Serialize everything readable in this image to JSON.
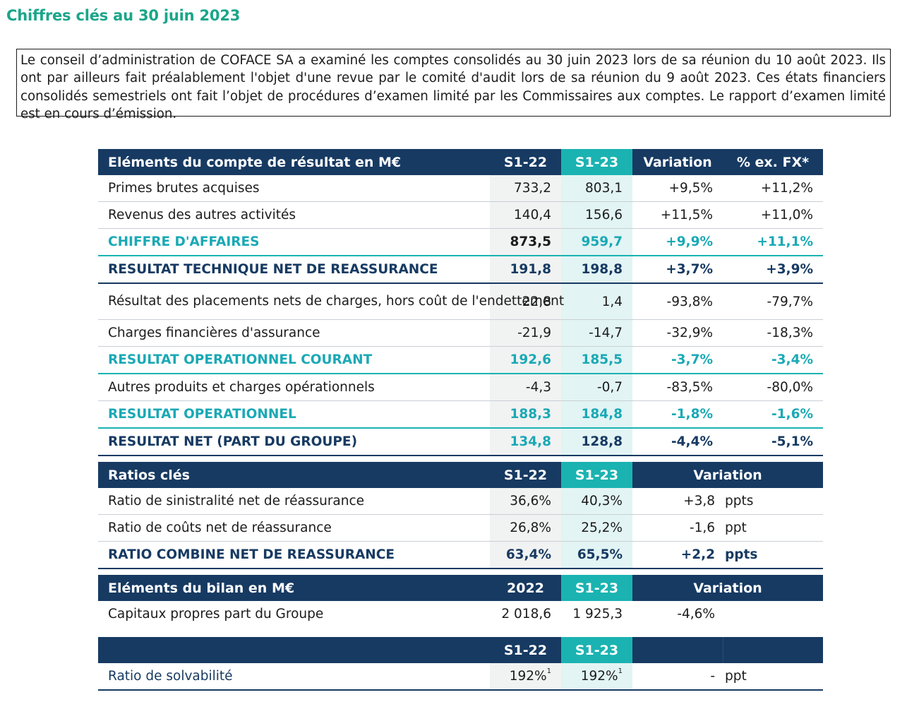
{
  "title": "Chiffres clés au 30 juin 2023",
  "intro": "Le conseil d’administration de COFACE SA a examiné les comptes consolidés au 30 juin 2023 lors de sa réunion du 10 août 2023. Ils ont par ailleurs fait préalablement l'objet d'une revue par le comité d'audit lors de sa réunion du 9 août 2023. Ces états financiers consolidés semestriels ont fait l’objet de procédures d’examen limité par les Commissaires aux comptes. Le rapport d’examen limité est en cours d’émission.",
  "income": {
    "header": {
      "label": "Eléments du compte de résultat en M€",
      "c1": "S1-22",
      "c2": "S1-23",
      "c3": "Variation",
      "c4": "% ex. FX*"
    },
    "rows": [
      {
        "label": "Primes brutes acquises",
        "c1": "733,2",
        "c2": "803,1",
        "c3": "+9,5%",
        "c4": "+11,2%"
      },
      {
        "label": "Revenus des autres activités",
        "c1": "140,4",
        "c2": "156,6",
        "c3": "+11,5%",
        "c4": "+11,0%"
      },
      {
        "label": "CHIFFRE D'AFFAIRES",
        "c1": "873,5",
        "c2": "959,7",
        "c3": "+9,9%",
        "c4": "+11,1%"
      },
      {
        "label": "RESULTAT TECHNIQUE NET DE REASSURANCE",
        "c1": "191,8",
        "c2": "198,8",
        "c3": "+3,7%",
        "c4": "+3,9%"
      },
      {
        "label": "Résultat des placements nets de charges, hors coût de l'endettement",
        "c1": "22,8",
        "c2": "1,4",
        "c3": "-93,8%",
        "c4": "-79,7%"
      },
      {
        "label": "Charges financières d'assurance",
        "c1": "-21,9",
        "c2": "-14,7",
        "c3": "-32,9%",
        "c4": "-18,3%"
      },
      {
        "label": "RESULTAT OPERATIONNEL COURANT",
        "c1": "192,6",
        "c2": "185,5",
        "c3": "-3,7%",
        "c4": "-3,4%"
      },
      {
        "label": "Autres produits et charges opérationnels",
        "c1": "-4,3",
        "c2": "-0,7",
        "c3": "-83,5%",
        "c4": "-80,0%"
      },
      {
        "label": "RESULTAT OPERATIONNEL",
        "c1": "188,3",
        "c2": "184,8",
        "c3": "-1,8%",
        "c4": "-1,6%"
      },
      {
        "label": "RESULTAT NET (PART DU GROUPE)",
        "c1": "134,8",
        "c2": "128,8",
        "c3": "-4,4%",
        "c4": "-5,1%"
      }
    ]
  },
  "ratios": {
    "header": {
      "label": "Ratios clés",
      "c1": "S1-22",
      "c2": "S1-23",
      "c3": "Variation"
    },
    "rows": [
      {
        "label": "Ratio de sinistralité net de réassurance",
        "c1": "36,6%",
        "c2": "40,3%",
        "num": "+3,8",
        "unit": "ppts"
      },
      {
        "label": "Ratio de coûts net de réassurance",
        "c1": "26,8%",
        "c2": "25,2%",
        "num": "-1,6",
        "unit": "ppt"
      },
      {
        "label": "RATIO COMBINE NET DE REASSURANCE",
        "c1": "63,4%",
        "c2": "65,5%",
        "num": "+2,2",
        "unit": "ppts"
      }
    ]
  },
  "balance": {
    "header": {
      "label": "Eléments du bilan en M€",
      "c1": "2022",
      "c2": "S1-23",
      "c3": "Variation"
    },
    "rows": [
      {
        "label": "Capitaux propres part du Groupe",
        "c1": "2 018,6",
        "c2": "1 925,3",
        "num": "-4,6%"
      }
    ]
  },
  "solvency": {
    "header": {
      "label": "",
      "c1": "S1-22",
      "c2": "S1-23"
    },
    "rows": [
      {
        "label": "Ratio de solvabilité",
        "c1": "192%",
        "c1_fn": "1",
        "c2": "192%",
        "c2_fn": "1",
        "num": "-",
        "unit": "ppt"
      }
    ]
  },
  "colors": {
    "navy": "#173a62",
    "teal": "#1ab3b1",
    "green_title": "#1aa68a"
  }
}
